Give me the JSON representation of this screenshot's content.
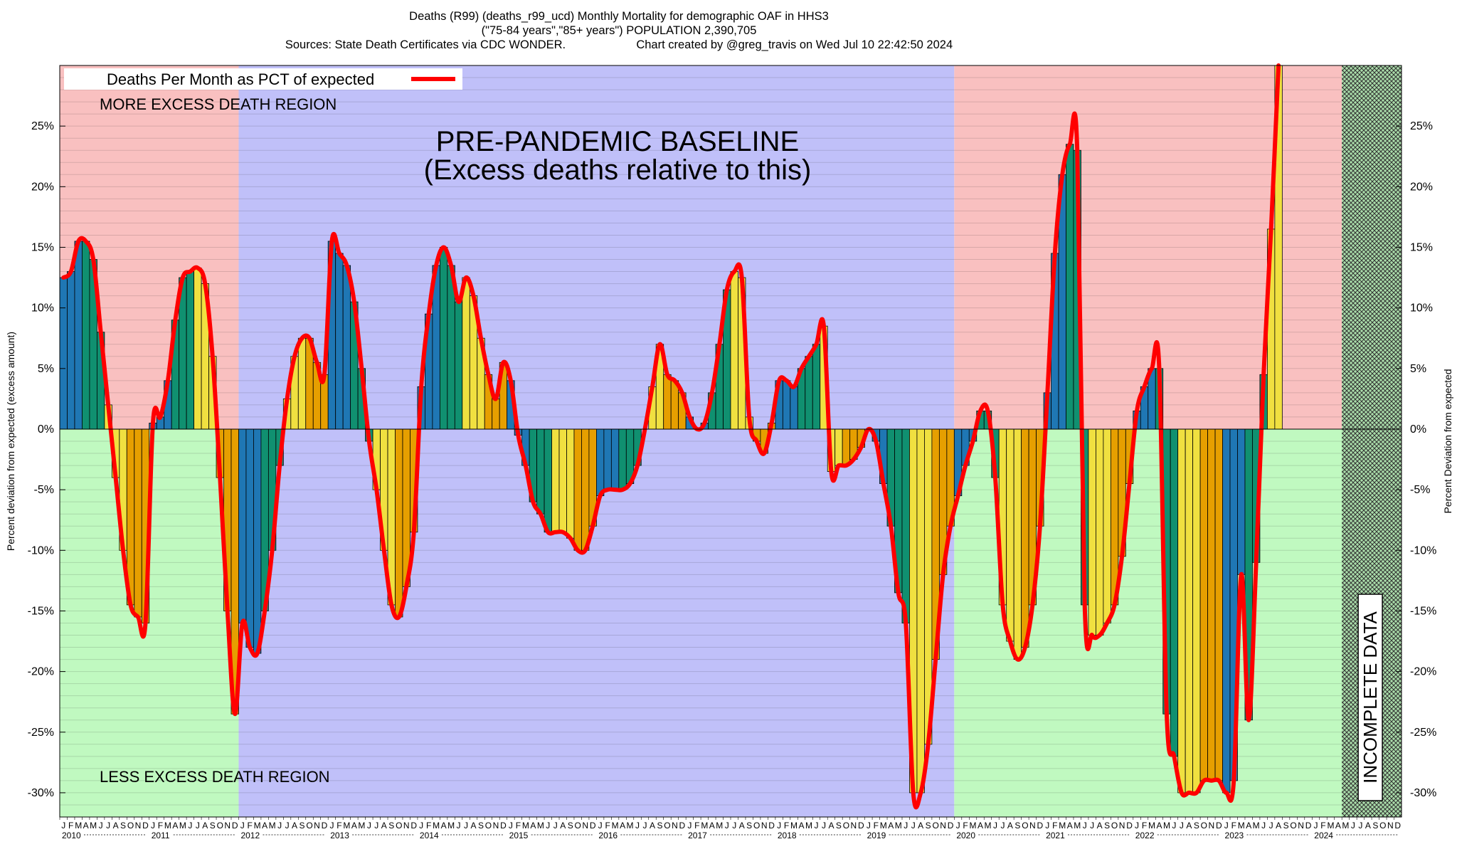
{
  "header": {
    "line1": "Deaths (R99) (deaths_r99_ucd) Monthly Mortality for demographic OAF in HHS3",
    "line2": "(\"75-84 years\",\"85+ years\") POPULATION 2,390,705",
    "line3_left": "Sources: State Death Certificates via CDC WONDER.",
    "line3_right": "Chart created by @greg_travis on Wed Jul 10 22:42:50 2024"
  },
  "colors": {
    "excess_region": "#f9c0c0",
    "less_region": "#c0f9c0",
    "baseline_region": "#c0c0f9",
    "winter_bar": "#1f77b4",
    "spring_bar": "#109070",
    "summer_bar": "#f0e040",
    "autumn_bar": "#e69f00",
    "line": "#ff0000"
  },
  "chart_data": {
    "type": "bar",
    "ylabel_left": "Percent deviation from expected (excess amount)",
    "ylabel_right": "Percent Deviation from expected",
    "ylim": [
      -32,
      30
    ],
    "yticks": [
      -30,
      -25,
      -20,
      -15,
      -10,
      -5,
      0,
      5,
      10,
      15,
      20,
      25
    ],
    "ytick_labels": [
      "-30%",
      "-25%",
      "-20%",
      "-15%",
      "-10%",
      "-5%",
      "0%",
      "5%",
      "10%",
      "15%",
      "20%",
      "25%"
    ],
    "month_letters": [
      "J",
      "F",
      "M",
      "A",
      "M",
      "J",
      "J",
      "A",
      "S",
      "O",
      "N",
      "D"
    ],
    "years": [
      "2010",
      "2011",
      "2012",
      "2013",
      "2014",
      "2015",
      "2016",
      "2017",
      "2018",
      "2019",
      "2020",
      "2021",
      "2022",
      "2023",
      "2024"
    ],
    "legend": "Deaths Per Month as PCT of expected",
    "annotations": {
      "more": "MORE EXCESS DEATH REGION",
      "less": "LESS EXCESS DEATH REGION",
      "baseline_1": "PRE-PANDEMIC BASELINE",
      "baseline_2": "(Excess deaths relative to this)",
      "incomplete": "INCOMPLETE DATA"
    },
    "baseline_period": [
      "2012-01",
      "2019-12"
    ],
    "incomplete_period": [
      "2024-05",
      "2024-06"
    ],
    "start": "2010-01",
    "values": [
      12.5,
      13.0,
      15.5,
      15.5,
      14.0,
      8.0,
      2.0,
      -4.0,
      -10.0,
      -14.5,
      -15.5,
      -16.0,
      0.5,
      1.0,
      4.0,
      9.0,
      12.5,
      13.0,
      13.3,
      12.0,
      6.0,
      -4.0,
      -15.0,
      -23.5,
      -16.0,
      -18.0,
      -18.5,
      -15.0,
      -10.0,
      -3.0,
      2.5,
      6.0,
      7.5,
      7.5,
      5.5,
      4.5,
      15.5,
      14.5,
      13.5,
      10.5,
      5.0,
      -1.0,
      -5.0,
      -10.0,
      -14.5,
      -15.5,
      -13.0,
      -8.5,
      3.5,
      9.5,
      13.5,
      15.0,
      13.5,
      10.5,
      12.5,
      11.0,
      7.5,
      4.5,
      2.5,
      5.5,
      4.0,
      -0.5,
      -3.0,
      -6.0,
      -7.0,
      -8.5,
      -8.5,
      -8.5,
      -9.0,
      -10.0,
      -10.0,
      -8.0,
      -5.5,
      -5.0,
      -5.0,
      -5.0,
      -4.5,
      -3.0,
      0.0,
      3.5,
      7.0,
      4.5,
      4.0,
      3.0,
      1.0,
      0.0,
      0.5,
      3.0,
      7.0,
      11.5,
      13.0,
      12.5,
      1.0,
      -1.0,
      -2.0,
      0.5,
      4.0,
      4.0,
      3.5,
      5.0,
      6.0,
      7.0,
      8.5,
      -3.5,
      -3.0,
      -3.0,
      -2.5,
      -1.5,
      0.0,
      -1.0,
      -4.5,
      -8.0,
      -13.5,
      -16.0,
      -30.0,
      -30.0,
      -26.0,
      -19.0,
      -12.0,
      -8.0,
      -5.5,
      -3.0,
      -1.0,
      1.5,
      1.5,
      -4.0,
      -14.5,
      -17.5,
      -19.0,
      -18.0,
      -14.5,
      -8.0,
      3.0,
      14.5,
      21.0,
      23.5,
      23.0,
      -14.5,
      -17.0,
      -17.0,
      -16.0,
      -14.5,
      -10.5,
      -4.5,
      1.5,
      3.5,
      5.0,
      5.0,
      -23.5,
      -27.0,
      -30.0,
      -30.0,
      -30.0,
      -29.0,
      -29.0,
      -29.0,
      -30.0,
      -29.0,
      -12.0,
      -24.0,
      -11.0,
      4.5,
      16.5,
      30.0
    ]
  }
}
